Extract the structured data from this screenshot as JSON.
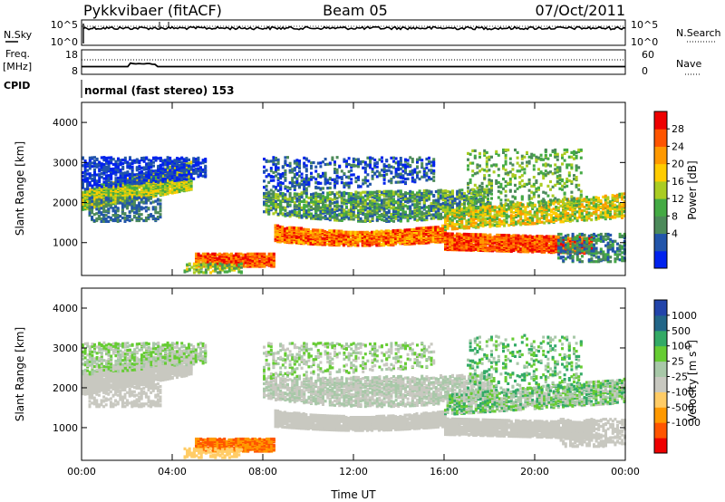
{
  "header": {
    "station": "Pykkvibaer (fitACF)",
    "beam": "Beam 05",
    "date": "07/Oct/2011"
  },
  "nsky_panel": {
    "left_label": "N.Sky",
    "left_ticks": [
      "10^5",
      "10^0"
    ],
    "right_label": "N.Search",
    "right_ticks": [
      "10^5",
      "10^0"
    ]
  },
  "freq_panel": {
    "left_label_top": "Freq.",
    "left_label_unit": "[MHz]",
    "left_ticks": [
      "18",
      "8"
    ],
    "right_label": "Nave",
    "right_ticks": [
      "60",
      "0"
    ]
  },
  "cpid": {
    "label": "CPID",
    "text": "normal (fast stereo) 153"
  },
  "colors": {
    "power_scale": [
      "#0022ee",
      "#2255aa",
      "#4c8a5a",
      "#44aa44",
      "#aacc22",
      "#ffcc00",
      "#ff9900",
      "#ff5500",
      "#ee0000"
    ],
    "velocity_scale": [
      "#ee0000",
      "#ff5500",
      "#ff9900",
      "#ffcc66",
      "#c8c8c0",
      "#a8c8a8",
      "#66cc33",
      "#33aa66",
      "#226688",
      "#2244aa"
    ]
  },
  "chart_data": [
    {
      "type": "heatmap",
      "ylabel": "Slant Range [km]",
      "ylim": [
        180,
        4500
      ],
      "y_ticks": [
        "4000",
        "3000",
        "2000",
        "1000"
      ],
      "x_ticks": [
        "00:00",
        "04:00",
        "08:00",
        "12:00",
        "16:00",
        "20:00",
        "00:00"
      ],
      "colorbar_label": "Power [dB]",
      "colorbar_ticks": [
        "28",
        "24",
        "20",
        "16",
        "12",
        "8",
        "4"
      ]
    },
    {
      "type": "heatmap",
      "ylabel": "Slant Range [km]",
      "ylim": [
        180,
        4500
      ],
      "y_ticks": [
        "4000",
        "3000",
        "2000",
        "1000"
      ],
      "x_ticks": [
        "00:00",
        "04:00",
        "08:00",
        "12:00",
        "16:00",
        "20:00",
        "00:00"
      ],
      "xlabel": "Time UT",
      "colorbar_label": "Velocity [m s",
      "colorbar_label_sup": "-1",
      "colorbar_label_end": "]",
      "colorbar_ticks": [
        "1000",
        "500",
        "100",
        "25",
        "-25",
        "-100",
        "-500",
        "-1000"
      ]
    }
  ]
}
